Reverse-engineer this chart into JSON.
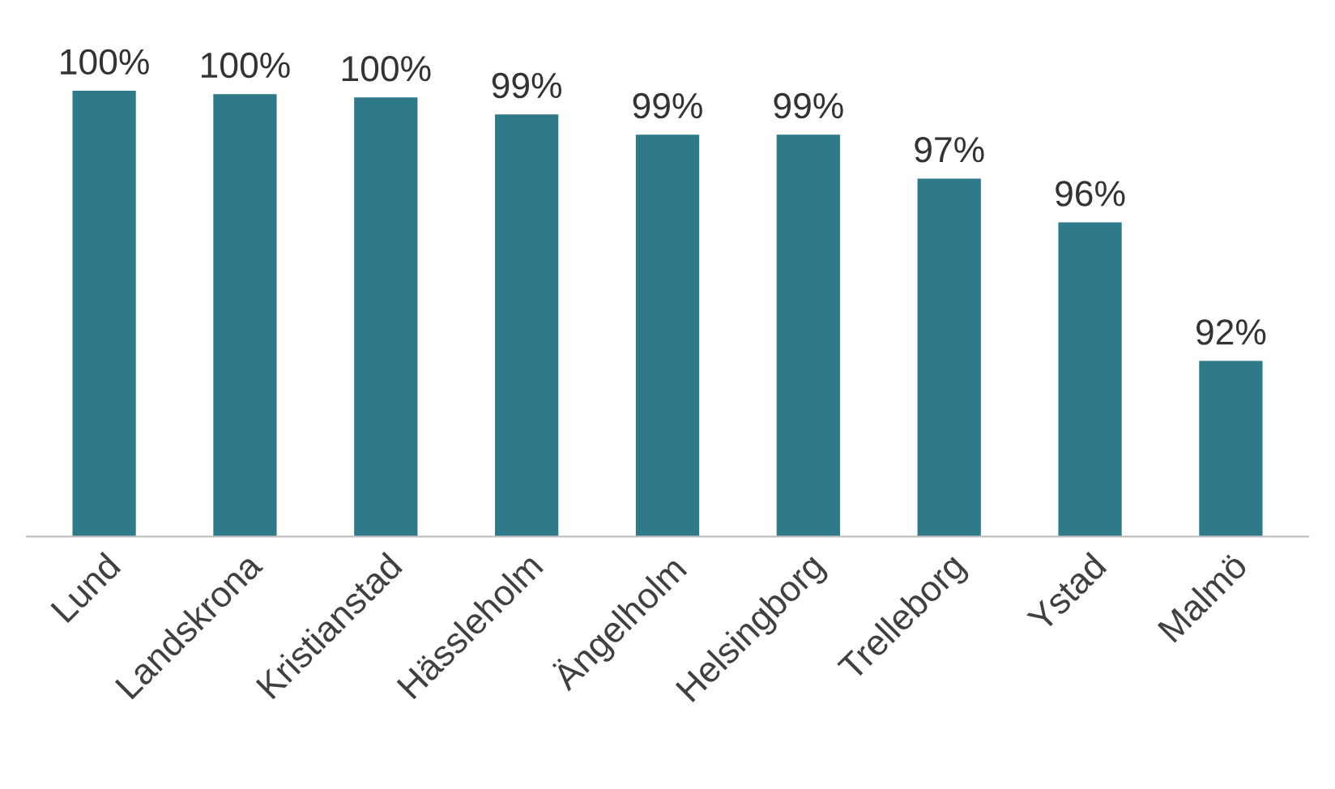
{
  "chart_data": {
    "type": "bar",
    "categories": [
      "Lund",
      "Landskrona",
      "Kristianstad",
      "Hässleholm",
      "Ängelholm",
      "Helsingborg",
      "Trelleborg",
      "Ystad",
      "Malmö"
    ],
    "values": [
      100.0,
      99.9,
      99.8,
      99.3,
      98.7,
      98.7,
      97.4,
      96.1,
      92.0
    ],
    "value_labels": [
      "100%",
      "100%",
      "100%",
      "99%",
      "99%",
      "99%",
      "97%",
      "96%",
      "92%"
    ],
    "color": "#2e7a8b",
    "ylim": [
      86.8,
      100.0
    ],
    "tick_labels": "x",
    "grid": false,
    "legend": false
  }
}
